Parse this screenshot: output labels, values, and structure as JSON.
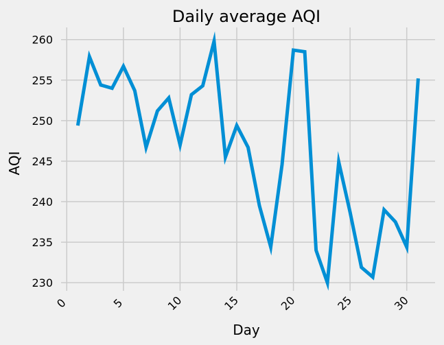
{
  "chart_data": {
    "type": "line",
    "title": "Daily average AQI",
    "xlabel": "Day",
    "ylabel": "AQI",
    "xlim": [
      -0.5,
      32.5
    ],
    "ylim": [
      229.0,
      261.5
    ],
    "xticks": [
      0,
      5,
      10,
      15,
      20,
      25,
      30
    ],
    "xtick_labels": [
      "0",
      "5",
      "10",
      "15",
      "20",
      "25",
      "30"
    ],
    "yticks": [
      230,
      235,
      240,
      245,
      250,
      255,
      260
    ],
    "ytick_labels": [
      "230",
      "235",
      "240",
      "245",
      "250",
      "255",
      "260"
    ],
    "grid": true,
    "line_color": "#008fd5",
    "grid_color": "#cbcbcb",
    "background_color": "#f0f0f0",
    "x": [
      1,
      2,
      3,
      4,
      5,
      6,
      7,
      8,
      9,
      10,
      11,
      12,
      13,
      14,
      15,
      16,
      17,
      18,
      19,
      20,
      21,
      22,
      23,
      24,
      25,
      26,
      27,
      28,
      29,
      30,
      31
    ],
    "y": [
      249.6,
      257.9,
      254.4,
      254.0,
      256.7,
      253.7,
      246.7,
      251.2,
      252.8,
      247.0,
      253.2,
      254.3,
      259.8,
      245.5,
      249.4,
      246.7,
      239.5,
      234.4,
      244.6,
      258.7,
      258.5,
      234.0,
      230.0,
      244.9,
      238.7,
      231.9,
      230.7,
      239.0,
      237.5,
      234.4,
      255.0
    ]
  }
}
